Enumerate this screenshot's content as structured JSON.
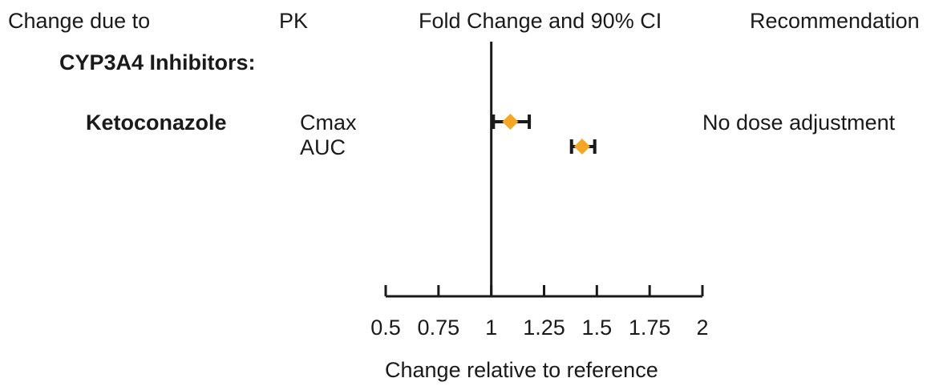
{
  "header": {
    "change_due_to": "Change due to",
    "pk": "PK",
    "fold_change": "Fold Change and 90% CI",
    "recommendation": "Recommendation"
  },
  "group": {
    "title": "CYP3A4 Inhibitors:",
    "drug": "Ketoconazole",
    "recommendation": "No dose adjustment"
  },
  "chart_data": {
    "type": "scatter",
    "title": "",
    "xlabel": "Change relative to reference",
    "xlim": [
      0.5,
      2
    ],
    "x_ticks": [
      0.5,
      0.75,
      1,
      1.25,
      1.5,
      1.75,
      2
    ],
    "x_tick_labels": [
      "0.5",
      "0.75",
      "1",
      "1.25",
      "1.5",
      "1.75",
      "2"
    ],
    "reference_line": 1,
    "points": [
      {
        "parameter": "Cmax",
        "estimate": 1.09,
        "ci_low": 1.01,
        "ci_high": 1.18
      },
      {
        "parameter": "AUC",
        "estimate": 1.43,
        "ci_low": 1.38,
        "ci_high": 1.49
      }
    ],
    "marker_color": "#f5a623",
    "errorbar_color": "#1a1a1a"
  }
}
